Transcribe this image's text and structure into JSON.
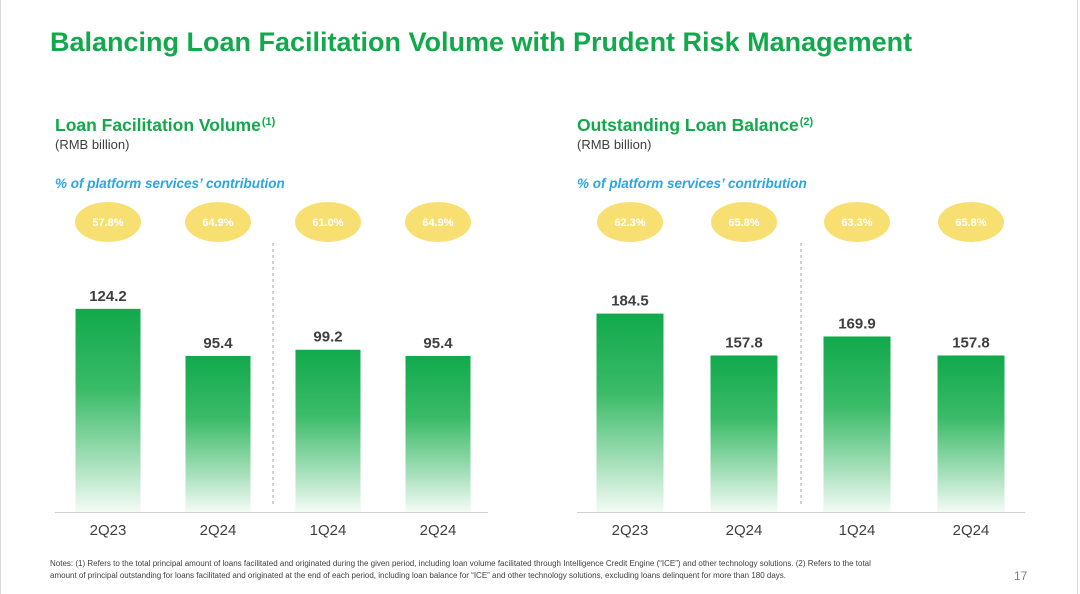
{
  "title": "Balancing Loan Facilitation Volume with Prudent Risk Management",
  "colors": {
    "brand_green": "#12A84C",
    "contribution_blue": "#2BA6DE",
    "badge_yellow": "#F7DF72",
    "badge_text": "#FFFFFF",
    "label_text": "#404040",
    "axis_line": "#D0D0D0",
    "divider_line": "#A6A6A6",
    "bar_gradient": [
      "#11A94C",
      "#3BBB68",
      "#A4DFB9",
      "#F4FBF6"
    ]
  },
  "chart_data": [
    {
      "type": "bar",
      "title": "Loan Facilitation Volume",
      "title_footnote": "(1)",
      "subtitle": "(RMB billion)",
      "contribution_title": "% of platform services’ contribution",
      "categories": [
        "2Q23",
        "2Q24",
        "1Q24",
        "2Q24"
      ],
      "values": [
        124.2,
        95.4,
        99.2,
        95.4
      ],
      "contribution": [
        "57.8%",
        "64.9%",
        "61.0%",
        "64.9%"
      ],
      "xlabel": "",
      "ylabel": "",
      "ylim": [
        0,
        140
      ],
      "grid": false
    },
    {
      "type": "bar",
      "title": "Outstanding Loan Balance",
      "title_footnote": "(2)",
      "subtitle": "(RMB billion)",
      "contribution_title": "% of platform services’ contribution",
      "categories": [
        "2Q23",
        "2Q24",
        "1Q24",
        "2Q24"
      ],
      "values": [
        184.5,
        157.8,
        169.9,
        157.8
      ],
      "contribution": [
        "62.3%",
        "65.8%",
        "63.3%",
        "65.8%"
      ],
      "xlabel": "",
      "ylabel": "",
      "ylim": [
        58,
        204
      ],
      "grid": false
    }
  ],
  "notes": [
    "Notes: (1) Refers to the total principal amount of loans facilitated and originated during the given period, including loan volume facilitated through Intelligence Credit Engine (“ICE”) and other technology solutions. (2) Refers to the total",
    "amount of principal outstanding for loans facilitated and originated at the end of each period, including loan balance for “ICE” and other technology solutions, excluding loans delinquent for more than 180 days."
  ],
  "page_number": "17"
}
